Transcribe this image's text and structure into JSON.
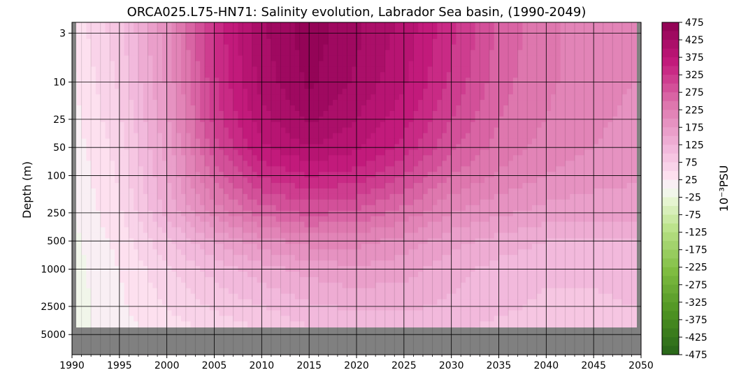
{
  "chart_data": {
    "type": "heatmap",
    "title": "ORCA025.L75-HN71: Salinity evolution, Labrador Sea basin, (1990-2049)",
    "xlabel": "",
    "ylabel": "Depth (m)",
    "colorbar_label": "10⁻³PSU",
    "x_scale": "linear",
    "y_scale": "log",
    "xlim": [
      1990,
      2050
    ],
    "ylim": [
      3,
      5000
    ],
    "x_ticks": [
      "1990",
      "1995",
      "2000",
      "2005",
      "2010",
      "2015",
      "2020",
      "2025",
      "2030",
      "2035",
      "2040",
      "2045",
      "2050"
    ],
    "y_ticks": [
      "3",
      "10",
      "25",
      "50",
      "100",
      "250",
      "500",
      "1000",
      "2500",
      "5000"
    ],
    "grid": true,
    "colorbar_ticks": [
      "475",
      "425",
      "375",
      "325",
      "275",
      "225",
      "175",
      "125",
      "75",
      "25",
      "-25",
      "-75",
      "-125",
      "-175",
      "-225",
      "-275",
      "-325",
      "-375",
      "-425",
      "-475"
    ],
    "colorbar_range": [
      -475,
      475
    ],
    "colormap": "PiYG (green negative, pink positive)",
    "missing_color": "#808080",
    "no_data_below_depth_m": 4200,
    "years": [
      1990,
      1995,
      2000,
      2005,
      2010,
      2015,
      2020,
      2025,
      2030,
      2035,
      2040,
      2045,
      2049
    ],
    "depths": [
      3,
      10,
      25,
      50,
      100,
      250,
      500,
      1000,
      2500,
      4000
    ],
    "values": [
      [
        30,
        90,
        190,
        330,
        420,
        465,
        430,
        390,
        330,
        270,
        230,
        210,
        200
      ],
      [
        20,
        80,
        180,
        320,
        410,
        455,
        420,
        380,
        320,
        260,
        230,
        210,
        200
      ],
      [
        15,
        70,
        170,
        310,
        390,
        430,
        400,
        360,
        300,
        250,
        225,
        205,
        195
      ],
      [
        10,
        60,
        160,
        290,
        370,
        400,
        380,
        340,
        280,
        240,
        215,
        200,
        190
      ],
      [
        5,
        55,
        150,
        260,
        330,
        350,
        340,
        300,
        250,
        220,
        200,
        185,
        180
      ],
      [
        0,
        45,
        130,
        210,
        260,
        280,
        270,
        240,
        200,
        180,
        165,
        160,
        160
      ],
      [
        -10,
        35,
        95,
        150,
        190,
        210,
        210,
        190,
        160,
        140,
        125,
        125,
        125
      ],
      [
        -10,
        25,
        70,
        110,
        140,
        160,
        170,
        160,
        135,
        115,
        105,
        105,
        110
      ],
      [
        -15,
        20,
        50,
        80,
        100,
        120,
        130,
        130,
        120,
        105,
        95,
        95,
        100
      ],
      [
        -10,
        15,
        40,
        60,
        80,
        100,
        110,
        110,
        105,
        95,
        90,
        90,
        95
      ]
    ]
  }
}
